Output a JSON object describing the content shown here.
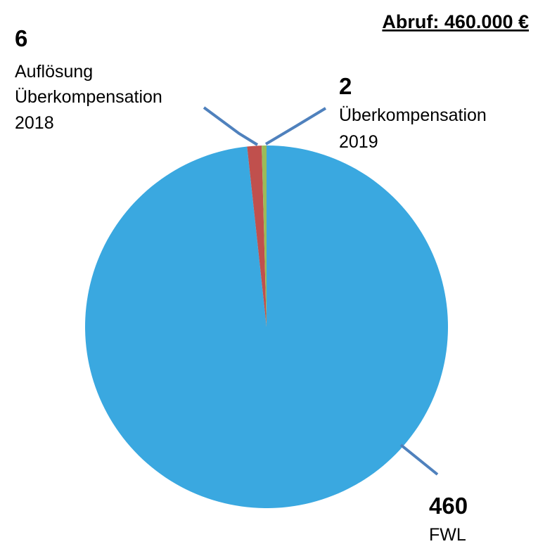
{
  "chart_data": {
    "type": "pie",
    "title": "Abruf: 460.000 €",
    "slices": [
      {
        "value": 460,
        "value_label": "460",
        "label_lines": [
          "FWL"
        ],
        "color": "#3aa8e0"
      },
      {
        "value": 6,
        "value_label": "6",
        "label_lines": [
          "Auflösung",
          "Überkompensation",
          "2018"
        ],
        "color": "#c0504d"
      },
      {
        "value": 2,
        "value_label": "2",
        "label_lines": [
          "Überkompensation",
          "2019"
        ],
        "color": "#9bbb59"
      }
    ],
    "leader_color": "#4f81bd",
    "legend": "none"
  }
}
